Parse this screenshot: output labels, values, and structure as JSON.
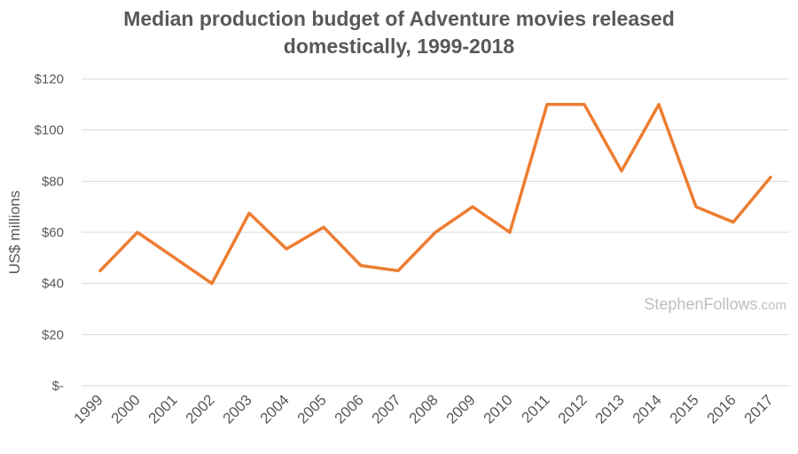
{
  "chart_data": {
    "type": "line",
    "title_lines": [
      "Median production budget of Adventure movies released",
      "domestically, 1999-2018"
    ],
    "ylabel": "US$ millions",
    "xlabel": "",
    "categories": [
      "1999",
      "2000",
      "2001",
      "2002",
      "2003",
      "2004",
      "2005",
      "2006",
      "2007",
      "2008",
      "2009",
      "2010",
      "2011",
      "2012",
      "2013",
      "2014",
      "2015",
      "2016",
      "2017"
    ],
    "series": [
      {
        "values": [
          45,
          60,
          50,
          40,
          67.5,
          53.5,
          62,
          47,
          45,
          60,
          70,
          60,
          110,
          110,
          84,
          110,
          70,
          64,
          81.5
        ]
      }
    ],
    "ylim": [
      0,
      120
    ],
    "yticks": [
      0,
      20,
      40,
      60,
      80,
      100,
      120
    ],
    "ytick_labels": [
      "$-",
      "$20",
      "$40",
      "$60",
      "$80",
      "$100",
      "$120"
    ],
    "grid": true,
    "line_color": "#ED7D31",
    "grid_color": "#d9d9d9",
    "watermark": {
      "main": "StephenFollows",
      "suffix": ".com"
    }
  }
}
